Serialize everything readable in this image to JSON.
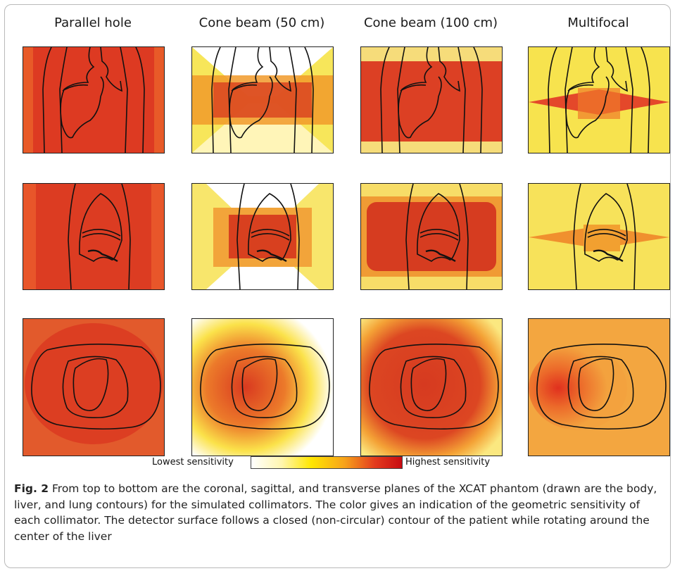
{
  "columns": [
    "Parallel hole",
    "Cone beam (50 cm)",
    "Cone beam (100 cm)",
    "Multifocal"
  ],
  "colorbar": {
    "low_label": "Lowest sensitivity",
    "high_label": "Highest sensitivity",
    "colors": [
      "#ffffff",
      "#fff6b0",
      "#ffe600",
      "#f7a21a",
      "#e33b1e",
      "#c80b12"
    ]
  },
  "caption": {
    "label": "Fig. 2",
    "text": " From top to bottom are the coronal, sagittal, and transverse planes of the XCAT phantom (drawn are the body, liver, and lung contours) for the simulated collimators. The color gives an indication of the geometric sensitivity of each collimator. The detector surface follows a closed (non-circular) contour of the patient while rotating around the center of the liver"
  },
  "planes": [
    "coronal",
    "sagittal",
    "transverse"
  ]
}
